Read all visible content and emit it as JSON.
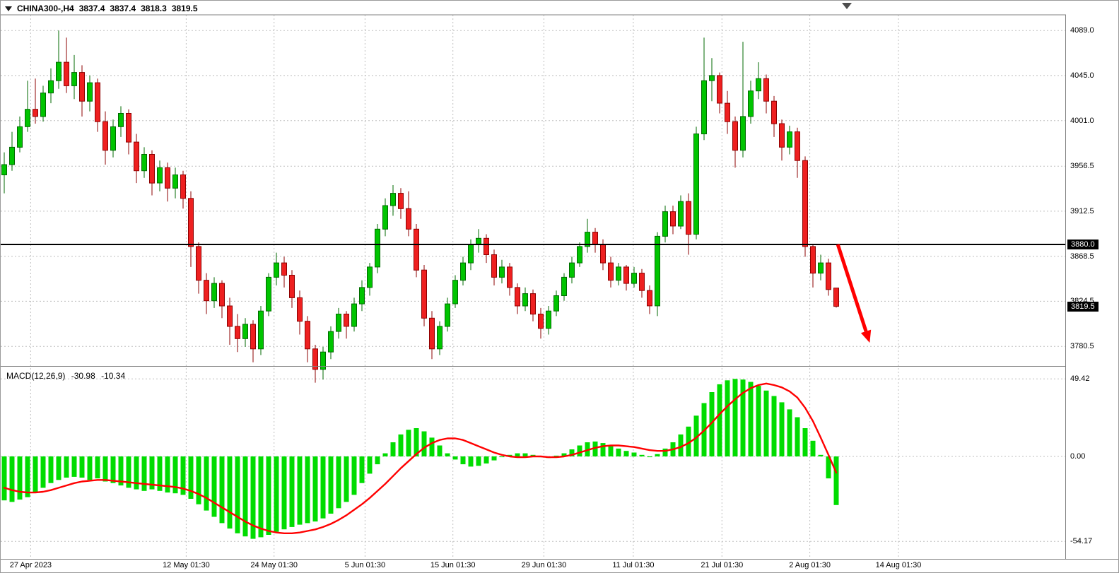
{
  "header": {
    "symbol_period": "CHINA300-,H4",
    "open": "3837.4",
    "high": "3837.4",
    "low": "3818.3",
    "close": "3819.5"
  },
  "macd_label": {
    "name": "MACD(12,26,9)",
    "main_value": "-30.98",
    "signal_value": "-10.34"
  },
  "colors": {
    "up_fill": "#00c400",
    "up_stroke": "#006a00",
    "down_fill": "#ee2020",
    "down_stroke": "#8d0000",
    "hist": "#00dc00",
    "signal": "#ff0000",
    "grid": "#bfbfbf",
    "hline": "#000000",
    "arrow": "#ff0000",
    "badge_bg": "#000000",
    "badge_text": "#ffffff",
    "frame": "#808080"
  },
  "chart_data": [
    {
      "type": "candlestick",
      "title": "CHINA300- H4",
      "ylim": [
        3762,
        4104.3
      ],
      "grid": "dashed",
      "y_ticks": [
        "4089.0",
        "4045.0",
        "4001.0",
        "3956.5",
        "3912.5",
        "3868.5",
        "3824.5",
        "3780.5"
      ],
      "price_badges": [
        {
          "price": 3880.0,
          "label": "3880.0"
        },
        {
          "price": 3819.5,
          "label": "3819.5"
        }
      ],
      "hline": 3880.0,
      "x_labels": [
        {
          "text": "27 Apr 2023",
          "i": 3.4
        },
        {
          "text": "12 May 01:30",
          "i": 23.4
        },
        {
          "text": "24 May 01:30",
          "i": 34.7
        },
        {
          "text": "5 Jun 01:30",
          "i": 46.4
        },
        {
          "text": "15 Jun 01:30",
          "i": 57.7
        },
        {
          "text": "29 Jun 01:30",
          "i": 69.4
        },
        {
          "text": "11 Jul 01:30",
          "i": 80.9
        },
        {
          "text": "21 Jul 01:30",
          "i": 92.3
        },
        {
          "text": "2 Aug 01:30",
          "i": 103.6
        },
        {
          "text": "14 Aug 01:30",
          "i": 115.0
        }
      ],
      "arrow": {
        "from": {
          "i": 107.2,
          "price": 3880
        },
        "to": {
          "i": 111.3,
          "price": 3784
        }
      },
      "candles_ohlc": [
        [
          3948,
          3970,
          3930,
          3958
        ],
        [
          3958,
          3990,
          3952,
          3975
        ],
        [
          3975,
          4005,
          3970,
          3995
        ],
        [
          3995,
          4040,
          3990,
          4012
        ],
        [
          4012,
          4042,
          3998,
          4005
        ],
        [
          4005,
          4035,
          4000,
          4028
        ],
        [
          4028,
          4052,
          4018,
          4040
        ],
        [
          4040,
          4089,
          4032,
          4058
        ],
        [
          4058,
          4082,
          4028,
          4035
        ],
        [
          4035,
          4065,
          4022,
          4048
        ],
        [
          4048,
          4055,
          4005,
          4020
        ],
        [
          4020,
          4045,
          4010,
          4038
        ],
        [
          4038,
          4042,
          3990,
          4000
        ],
        [
          4000,
          4010,
          3958,
          3972
        ],
        [
          3972,
          4002,
          3965,
          3995
        ],
        [
          3995,
          4015,
          3985,
          4008
        ],
        [
          4008,
          4012,
          3968,
          3980
        ],
        [
          3980,
          3988,
          3940,
          3952
        ],
        [
          3952,
          3975,
          3945,
          3968
        ],
        [
          3968,
          3972,
          3928,
          3940
        ],
        [
          3940,
          3962,
          3932,
          3955
        ],
        [
          3955,
          3960,
          3922,
          3935
        ],
        [
          3935,
          3955,
          3925,
          3948
        ],
        [
          3948,
          3952,
          3915,
          3925
        ],
        [
          3925,
          3932,
          3858,
          3878
        ],
        [
          3878,
          3882,
          3832,
          3845
        ],
        [
          3845,
          3852,
          3812,
          3825
        ],
        [
          3825,
          3848,
          3818,
          3842
        ],
        [
          3842,
          3845,
          3808,
          3820
        ],
        [
          3820,
          3828,
          3782,
          3800
        ],
        [
          3800,
          3812,
          3775,
          3788
        ],
        [
          3788,
          3808,
          3780,
          3802
        ],
        [
          3802,
          3806,
          3765,
          3778
        ],
        [
          3778,
          3820,
          3772,
          3815
        ],
        [
          3815,
          3852,
          3810,
          3848
        ],
        [
          3848,
          3872,
          3840,
          3862
        ],
        [
          3862,
          3868,
          3838,
          3850
        ],
        [
          3850,
          3855,
          3818,
          3828
        ],
        [
          3828,
          3835,
          3792,
          3805
        ],
        [
          3805,
          3810,
          3765,
          3778
        ],
        [
          3778,
          3782,
          3745,
          3758
        ],
        [
          3758,
          3780,
          3748,
          3775
        ],
        [
          3775,
          3800,
          3768,
          3795
        ],
        [
          3795,
          3818,
          3788,
          3812
        ],
        [
          3812,
          3815,
          3788,
          3800
        ],
        [
          3800,
          3828,
          3795,
          3822
        ],
        [
          3822,
          3845,
          3815,
          3838
        ],
        [
          3838,
          3862,
          3830,
          3858
        ],
        [
          3858,
          3900,
          3852,
          3895
        ],
        [
          3895,
          3925,
          3888,
          3918
        ],
        [
          3918,
          3938,
          3908,
          3930
        ],
        [
          3930,
          3935,
          3905,
          3915
        ],
        [
          3915,
          3932,
          3888,
          3895
        ],
        [
          3895,
          3900,
          3848,
          3855
        ],
        [
          3855,
          3860,
          3800,
          3808
        ],
        [
          3808,
          3815,
          3768,
          3778
        ],
        [
          3778,
          3805,
          3772,
          3800
        ],
        [
          3800,
          3828,
          3795,
          3822
        ],
        [
          3822,
          3850,
          3818,
          3845
        ],
        [
          3845,
          3868,
          3840,
          3862
        ],
        [
          3862,
          3885,
          3855,
          3880
        ],
        [
          3880,
          3895,
          3872,
          3886
        ],
        [
          3886,
          3890,
          3862,
          3870
        ],
        [
          3870,
          3875,
          3840,
          3848
        ],
        [
          3848,
          3865,
          3842,
          3858
        ],
        [
          3858,
          3862,
          3830,
          3838
        ],
        [
          3838,
          3842,
          3812,
          3820
        ],
        [
          3820,
          3838,
          3815,
          3832
        ],
        [
          3832,
          3836,
          3805,
          3812
        ],
        [
          3812,
          3818,
          3788,
          3798
        ],
        [
          3798,
          3820,
          3792,
          3815
        ],
        [
          3815,
          3835,
          3810,
          3830
        ],
        [
          3830,
          3852,
          3825,
          3848
        ],
        [
          3848,
          3868,
          3842,
          3862
        ],
        [
          3862,
          3882,
          3858,
          3878
        ],
        [
          3878,
          3905,
          3872,
          3892
        ],
        [
          3892,
          3896,
          3872,
          3880
        ],
        [
          3880,
          3885,
          3855,
          3862
        ],
        [
          3862,
          3868,
          3838,
          3845
        ],
        [
          3845,
          3862,
          3840,
          3858
        ],
        [
          3858,
          3860,
          3835,
          3842
        ],
        [
          3842,
          3858,
          3838,
          3852
        ],
        [
          3852,
          3856,
          3828,
          3835
        ],
        [
          3835,
          3840,
          3812,
          3820
        ],
        [
          3820,
          3892,
          3810,
          3888
        ],
        [
          3888,
          3918,
          3882,
          3912
        ],
        [
          3912,
          3918,
          3890,
          3898
        ],
        [
          3898,
          3928,
          3895,
          3922
        ],
        [
          3922,
          3930,
          3870,
          3890
        ],
        [
          3890,
          3995,
          3885,
          3988
        ],
        [
          3988,
          4082,
          3982,
          4040
        ],
        [
          4040,
          4062,
          4020,
          4045
        ],
        [
          4045,
          4048,
          4008,
          4018
        ],
        [
          4018,
          4030,
          3988,
          4000
        ],
        [
          4000,
          4005,
          3955,
          3972
        ],
        [
          3972,
          4078,
          3965,
          4005
        ],
        [
          4005,
          4040,
          3998,
          4030
        ],
        [
          4030,
          4058,
          4022,
          4042
        ],
        [
          4042,
          4046,
          4008,
          4020
        ],
        [
          4020,
          4025,
          3985,
          3998
        ],
        [
          3998,
          4002,
          3962,
          3975
        ],
        [
          3975,
          3996,
          3968,
          3990
        ],
        [
          3990,
          3994,
          3945,
          3962
        ],
        [
          3962,
          3966,
          3868,
          3878
        ],
        [
          3878,
          3880,
          3838,
          3852
        ],
        [
          3852,
          3870,
          3845,
          3862
        ],
        [
          3862,
          3866,
          3830,
          3836
        ],
        [
          3837.4,
          3837.4,
          3818.3,
          3819.5
        ]
      ]
    },
    {
      "type": "bar",
      "title": "MACD(12,26,9)",
      "ylim": [
        -65.3,
        56.3
      ],
      "y_ticks": [
        "49.42",
        "0.00",
        "-54.17"
      ],
      "last_main": -30.98,
      "last_signal": -10.34,
      "histogram": [
        -28,
        -29,
        -27.5,
        -26,
        -23,
        -20,
        -17,
        -15,
        -13.5,
        -13,
        -13.5,
        -15,
        -14,
        -16,
        -17,
        -18.5,
        -20,
        -21,
        -22,
        -21,
        -22,
        -23,
        -23.5,
        -24.5,
        -27,
        -30.5,
        -34.5,
        -38.5,
        -42.5,
        -46,
        -49,
        -51,
        -52.5,
        -51.5,
        -50,
        -48,
        -46.5,
        -45,
        -43.5,
        -42.5,
        -41.5,
        -39.5,
        -36.5,
        -33,
        -29,
        -24.5,
        -17,
        -11,
        -5,
        2,
        9,
        14,
        17,
        18,
        16,
        12,
        7,
        2,
        -2,
        -5,
        -6.5,
        -6,
        -4.5,
        -2.5,
        -0.5,
        1,
        2,
        2,
        1,
        -0.5,
        -1,
        0.5,
        2,
        4.5,
        7,
        9,
        9.5,
        8.5,
        6.5,
        5,
        3.5,
        2.5,
        1,
        -0.5,
        1.5,
        5,
        9,
        14,
        19,
        26,
        34,
        41,
        46,
        48.5,
        49.42,
        49,
        47.5,
        45,
        42,
        38.5,
        34.5,
        30,
        25,
        18,
        10,
        1,
        -14,
        -30.98
      ],
      "signal": [
        -20,
        -21.5,
        -22.5,
        -23,
        -23,
        -22.5,
        -21.5,
        -20,
        -18.5,
        -17,
        -16,
        -15.5,
        -15,
        -15,
        -15.5,
        -16,
        -16.5,
        -17,
        -17.5,
        -18,
        -18.5,
        -19,
        -19.5,
        -20.5,
        -22,
        -24,
        -26.5,
        -29.5,
        -32.5,
        -35.5,
        -38.5,
        -41.5,
        -44,
        -46,
        -47.5,
        -48.5,
        -49,
        -49,
        -48.5,
        -47.5,
        -46.5,
        -45,
        -43,
        -40.5,
        -37.5,
        -34,
        -30.5,
        -26.5,
        -22,
        -17.5,
        -12.5,
        -7.5,
        -3,
        1.5,
        5.5,
        8.5,
        10.5,
        11.5,
        11.5,
        10.5,
        8.5,
        6.5,
        4.5,
        2.5,
        1,
        0,
        -0.5,
        -0.5,
        0,
        0,
        -0.5,
        -0.5,
        0,
        1,
        2.5,
        4,
        5.5,
        6.5,
        7,
        7,
        6.5,
        6,
        5,
        4,
        3.5,
        3.5,
        4.5,
        6,
        8.5,
        12,
        16.5,
        21.5,
        27,
        32,
        36.5,
        40.5,
        43.5,
        45.5,
        46.5,
        45.5,
        44,
        41.5,
        37.5,
        31,
        22.5,
        12,
        1,
        -10.34
      ]
    }
  ]
}
